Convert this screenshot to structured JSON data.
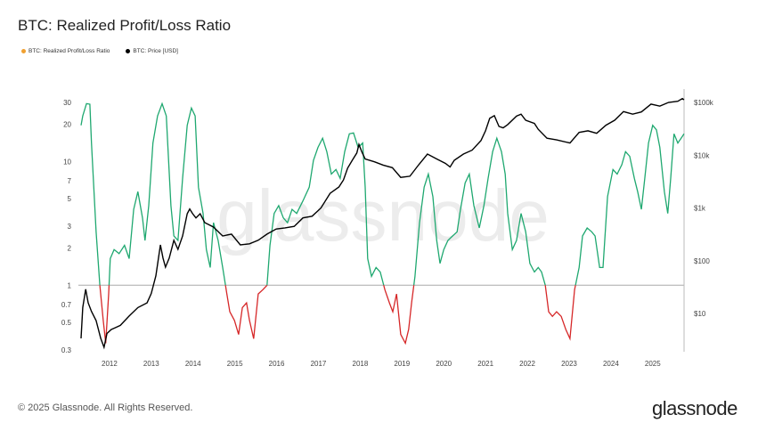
{
  "title": "BTC: Realized Profit/Loss Ratio",
  "footer": "© 2025 Glassnode. All Rights Reserved.",
  "brand": "glassnode",
  "colors": {
    "profit": "#1fa870",
    "loss": "#d62728",
    "price": "#000000",
    "legend_ratio": "#f0a030"
  },
  "chart_data": {
    "type": "line",
    "title": "BTC: Realized Profit/Loss Ratio",
    "legend": [
      "BTC: Realized Profit/Loss Ratio",
      "BTC: Price [USD]"
    ],
    "legend_position": "top-left",
    "xlim": [
      2011.32,
      2025.75
    ],
    "x_ticks": [
      "2012",
      "2013",
      "2014",
      "2015",
      "2016",
      "2017",
      "2018",
      "2019",
      "2020",
      "2021",
      "2022",
      "2023",
      "2024",
      "2025"
    ],
    "y_left": {
      "scale": "log",
      "lim": [
        0.3,
        34
      ],
      "ticks": [
        "30",
        "20",
        "10",
        "7",
        "5",
        "3",
        "2",
        "1",
        "0.7",
        "0.5",
        "0.3"
      ],
      "tick_values": [
        30,
        20,
        10,
        7,
        5,
        3,
        2,
        1,
        0.7,
        0.5,
        0.3
      ]
    },
    "y_right": {
      "scale": "log",
      "lim": [
        2,
        140000
      ],
      "ticks": [
        "$100k",
        "$10k",
        "$1k",
        "$100",
        "$10"
      ],
      "tick_values": [
        100000,
        10000,
        1000,
        100,
        10
      ]
    },
    "reference_line": 1,
    "series": [
      {
        "name": "BTC: Realized Profit/Loss Ratio",
        "axis": "left",
        "points": [
          [
            2011.32,
            19.6
          ],
          [
            2011.36,
            23.3
          ],
          [
            2011.45,
            29.3
          ],
          [
            2011.53,
            29
          ],
          [
            2011.57,
            14.1
          ],
          [
            2011.68,
            2.7
          ],
          [
            2011.77,
            1
          ],
          [
            2011.85,
            0.52
          ],
          [
            2011.91,
            0.34
          ],
          [
            2011.98,
            0.85
          ],
          [
            2012.02,
            1.64
          ],
          [
            2012.11,
            1.94
          ],
          [
            2012.23,
            1.8
          ],
          [
            2012.36,
            2.1
          ],
          [
            2012.47,
            1.64
          ],
          [
            2012.58,
            4.1
          ],
          [
            2012.68,
            5.7
          ],
          [
            2012.79,
            3.5
          ],
          [
            2012.85,
            2.3
          ],
          [
            2012.94,
            4.4
          ],
          [
            2013.04,
            14.1
          ],
          [
            2013.15,
            23.3
          ],
          [
            2013.26,
            29.3
          ],
          [
            2013.36,
            23.3
          ],
          [
            2013.47,
            4.4
          ],
          [
            2013.54,
            2.5
          ],
          [
            2013.64,
            2.3
          ],
          [
            2013.75,
            7.3
          ],
          [
            2013.86,
            19.6
          ],
          [
            2013.96,
            27
          ],
          [
            2014.05,
            23.3
          ],
          [
            2014.13,
            6.2
          ],
          [
            2014.24,
            3.8
          ],
          [
            2014.32,
            1.94
          ],
          [
            2014.41,
            1.39
          ],
          [
            2014.49,
            3.2
          ],
          [
            2014.6,
            2.3
          ],
          [
            2014.71,
            1.39
          ],
          [
            2014.81,
            0.85
          ],
          [
            2014.88,
            0.61
          ],
          [
            2014.99,
            0.52
          ],
          [
            2015.09,
            0.4
          ],
          [
            2015.18,
            0.66
          ],
          [
            2015.28,
            0.72
          ],
          [
            2015.35,
            0.52
          ],
          [
            2015.45,
            0.37
          ],
          [
            2015.56,
            0.85
          ],
          [
            2015.67,
            0.92
          ],
          [
            2015.77,
            1
          ],
          [
            2015.84,
            2.1
          ],
          [
            2015.94,
            3.8
          ],
          [
            2016.05,
            4.4
          ],
          [
            2016.16,
            3.5
          ],
          [
            2016.26,
            3.2
          ],
          [
            2016.37,
            4.1
          ],
          [
            2016.48,
            3.8
          ],
          [
            2016.63,
            4.8
          ],
          [
            2016.78,
            6.2
          ],
          [
            2016.88,
            10.2
          ],
          [
            2016.99,
            13
          ],
          [
            2017.1,
            15.4
          ],
          [
            2017.2,
            12
          ],
          [
            2017.31,
            7.9
          ],
          [
            2017.42,
            8.6
          ],
          [
            2017.52,
            7.3
          ],
          [
            2017.63,
            12
          ],
          [
            2017.74,
            16.7
          ],
          [
            2017.84,
            17
          ],
          [
            2017.95,
            13
          ],
          [
            2018.06,
            14.1
          ],
          [
            2018.12,
            6.2
          ],
          [
            2018.18,
            1.64
          ],
          [
            2018.27,
            1.18
          ],
          [
            2018.38,
            1.39
          ],
          [
            2018.48,
            1.28
          ],
          [
            2018.59,
            0.92
          ],
          [
            2018.7,
            0.72
          ],
          [
            2018.78,
            0.61
          ],
          [
            2018.87,
            0.85
          ],
          [
            2018.97,
            0.4
          ],
          [
            2019.08,
            0.34
          ],
          [
            2019.16,
            0.44
          ],
          [
            2019.23,
            0.72
          ],
          [
            2019.31,
            1.18
          ],
          [
            2019.42,
            3.2
          ],
          [
            2019.53,
            6.2
          ],
          [
            2019.63,
            7.9
          ],
          [
            2019.74,
            5.2
          ],
          [
            2019.83,
            2.3
          ],
          [
            2019.91,
            1.5
          ],
          [
            2020,
            1.94
          ],
          [
            2020.1,
            2.3
          ],
          [
            2020.21,
            2.5
          ],
          [
            2020.32,
            2.7
          ],
          [
            2020.4,
            4.1
          ],
          [
            2020.51,
            6.7
          ],
          [
            2020.61,
            7.9
          ],
          [
            2020.72,
            4.4
          ],
          [
            2020.85,
            2.9
          ],
          [
            2020.96,
            4.4
          ],
          [
            2021.06,
            7.3
          ],
          [
            2021.17,
            12
          ],
          [
            2021.27,
            15.4
          ],
          [
            2021.38,
            12
          ],
          [
            2021.47,
            7.9
          ],
          [
            2021.53,
            3.8
          ],
          [
            2021.64,
            1.94
          ],
          [
            2021.74,
            2.3
          ],
          [
            2021.85,
            3.8
          ],
          [
            2021.96,
            2.7
          ],
          [
            2022.06,
            1.5
          ],
          [
            2022.17,
            1.28
          ],
          [
            2022.26,
            1.39
          ],
          [
            2022.34,
            1.28
          ],
          [
            2022.43,
            1
          ],
          [
            2022.51,
            0.61
          ],
          [
            2022.6,
            0.56
          ],
          [
            2022.7,
            0.61
          ],
          [
            2022.81,
            0.56
          ],
          [
            2022.92,
            0.44
          ],
          [
            2023.02,
            0.37
          ],
          [
            2023.13,
            0.92
          ],
          [
            2023.24,
            1.39
          ],
          [
            2023.32,
            2.5
          ],
          [
            2023.43,
            2.9
          ],
          [
            2023.54,
            2.7
          ],
          [
            2023.62,
            2.5
          ],
          [
            2023.73,
            1.39
          ],
          [
            2023.81,
            1.39
          ],
          [
            2023.92,
            5.2
          ],
          [
            2024.05,
            8.6
          ],
          [
            2024.15,
            7.9
          ],
          [
            2024.26,
            9.4
          ],
          [
            2024.35,
            12
          ],
          [
            2024.45,
            11
          ],
          [
            2024.56,
            7.3
          ],
          [
            2024.64,
            5.7
          ],
          [
            2024.73,
            4.1
          ],
          [
            2024.81,
            7.3
          ],
          [
            2024.9,
            14.1
          ],
          [
            2025,
            19.6
          ],
          [
            2025.09,
            18
          ],
          [
            2025.17,
            13
          ],
          [
            2025.28,
            5.7
          ],
          [
            2025.36,
            3.8
          ],
          [
            2025.43,
            7.3
          ],
          [
            2025.51,
            16.7
          ],
          [
            2025.6,
            14.1
          ],
          [
            2025.68,
            15.4
          ],
          [
            2025.75,
            16.7
          ]
        ]
      },
      {
        "name": "BTC: Price [USD]",
        "axis": "right",
        "points": [
          [
            2011.32,
            3.4
          ],
          [
            2011.36,
            13
          ],
          [
            2011.43,
            29
          ],
          [
            2011.49,
            16
          ],
          [
            2011.57,
            11
          ],
          [
            2011.68,
            7.4
          ],
          [
            2011.79,
            3.4
          ],
          [
            2011.87,
            2.3
          ],
          [
            2011.94,
            4.2
          ],
          [
            2012.04,
            5
          ],
          [
            2012.26,
            6
          ],
          [
            2012.47,
            9
          ],
          [
            2012.68,
            13
          ],
          [
            2012.9,
            16
          ],
          [
            2013,
            24
          ],
          [
            2013.11,
            52
          ],
          [
            2013.22,
            200
          ],
          [
            2013.28,
            113
          ],
          [
            2013.34,
            76
          ],
          [
            2013.43,
            113
          ],
          [
            2013.54,
            245
          ],
          [
            2013.64,
            165
          ],
          [
            2013.75,
            295
          ],
          [
            2013.86,
            780
          ],
          [
            2013.92,
            960
          ],
          [
            2013.99,
            780
          ],
          [
            2014.07,
            650
          ],
          [
            2014.17,
            780
          ],
          [
            2014.28,
            530
          ],
          [
            2014.49,
            435
          ],
          [
            2014.71,
            295
          ],
          [
            2014.92,
            320
          ],
          [
            2015.13,
            200
          ],
          [
            2015.35,
            210
          ],
          [
            2015.56,
            245
          ],
          [
            2015.77,
            320
          ],
          [
            2015.99,
            400
          ],
          [
            2016.2,
            420
          ],
          [
            2016.42,
            450
          ],
          [
            2016.63,
            650
          ],
          [
            2016.85,
            700
          ],
          [
            2017.06,
            1000
          ],
          [
            2017.28,
            1900
          ],
          [
            2017.49,
            2500
          ],
          [
            2017.6,
            3400
          ],
          [
            2017.7,
            5700
          ],
          [
            2017.81,
            8000
          ],
          [
            2017.92,
            11000
          ],
          [
            2017.97,
            16000
          ],
          [
            2018.04,
            11500
          ],
          [
            2018.12,
            8500
          ],
          [
            2018.34,
            7500
          ],
          [
            2018.55,
            6500
          ],
          [
            2018.77,
            5800
          ],
          [
            2018.97,
            3800
          ],
          [
            2019.19,
            4000
          ],
          [
            2019.4,
            6600
          ],
          [
            2019.61,
            10500
          ],
          [
            2019.83,
            8500
          ],
          [
            2020.04,
            7000
          ],
          [
            2020.15,
            6000
          ],
          [
            2020.25,
            8000
          ],
          [
            2020.47,
            10500
          ],
          [
            2020.68,
            12500
          ],
          [
            2020.89,
            19000
          ],
          [
            2021,
            29000
          ],
          [
            2021.1,
            50000
          ],
          [
            2021.21,
            56000
          ],
          [
            2021.32,
            35000
          ],
          [
            2021.42,
            33000
          ],
          [
            2021.53,
            38000
          ],
          [
            2021.74,
            55000
          ],
          [
            2021.85,
            60000
          ],
          [
            2021.96,
            46000
          ],
          [
            2022.17,
            40000
          ],
          [
            2022.26,
            31000
          ],
          [
            2022.47,
            21000
          ],
          [
            2022.7,
            19500
          ],
          [
            2023.02,
            17000
          ],
          [
            2023.24,
            27000
          ],
          [
            2023.45,
            29000
          ],
          [
            2023.66,
            26000
          ],
          [
            2023.88,
            37000
          ],
          [
            2024.09,
            46000
          ],
          [
            2024.3,
            67000
          ],
          [
            2024.52,
            60000
          ],
          [
            2024.73,
            66000
          ],
          [
            2024.96,
            93000
          ],
          [
            2025.17,
            85000
          ],
          [
            2025.38,
            100000
          ],
          [
            2025.6,
            105000
          ],
          [
            2025.71,
            118000
          ],
          [
            2025.75,
            112000
          ]
        ]
      }
    ]
  }
}
